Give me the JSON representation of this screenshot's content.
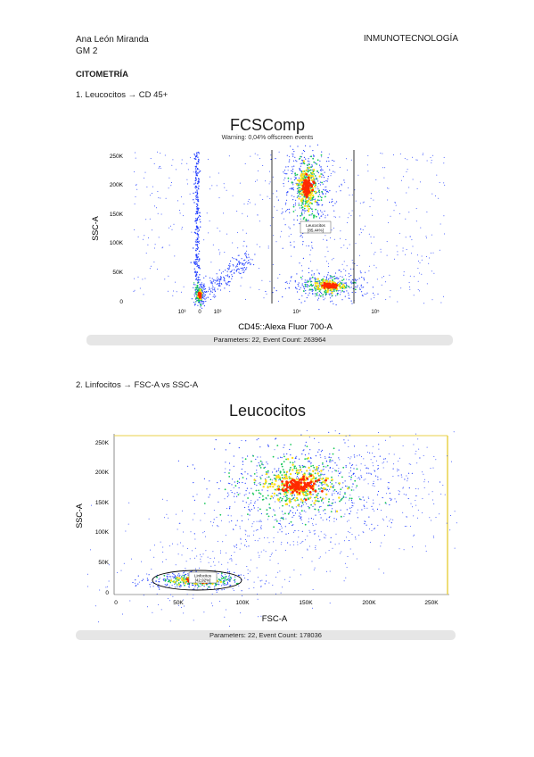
{
  "header": {
    "author": "Ana León Miranda",
    "group": "GM 2",
    "subject": "INMUNOTECNOLOGÍA"
  },
  "section_title": "CITOMETRÍA",
  "items": [
    {
      "label": "1. Leucocitos → CD 45+"
    },
    {
      "label": "2. Linfocitos → FSC-A vs SSC-A"
    }
  ],
  "plots": [
    {
      "title": "FCSComp",
      "subtitle": "Warning: 0,04% offscreen events",
      "xlabel": "CD45::Alexa Fluor 700-A",
      "ylabel": "SSC-A",
      "yticks": [
        "250K",
        "200K",
        "150K",
        "100K",
        "50K",
        "0"
      ],
      "xticks": [
        "10³",
        "0",
        "10³",
        "10⁴",
        "10⁵"
      ],
      "gate_label": "Leucocitos",
      "gate_value": "[85,44%]",
      "footer": "Parameters: 22, Event Count: 263964"
    },
    {
      "title": "Leucocitos",
      "xlabel": "FSC-A",
      "ylabel": "SSC-A",
      "yticks": [
        "250K",
        "200K",
        "150K",
        "100K",
        "50K",
        "0"
      ],
      "xticks": [
        "0",
        "50K",
        "100K",
        "150K",
        "200K",
        "250K"
      ],
      "gate_label": "Linfocitos",
      "gate_value": "[42,92%]",
      "footer": "Parameters: 22, Event Count: 178036"
    }
  ],
  "colors": {
    "density_low": "#1f3cff",
    "density_mid": "#19c85a",
    "density_high": "#ffe01a",
    "density_peak": "#ff2a00"
  }
}
